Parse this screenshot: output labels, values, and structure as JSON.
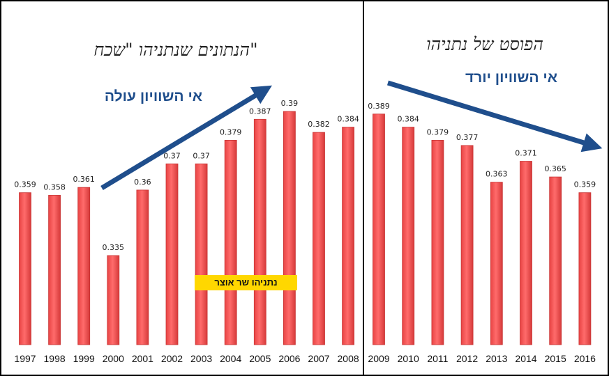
{
  "panels": {
    "left": {
      "title": "הנתונים שנתניהו \"שכח\"",
      "trend_label": "אי השוויון עולה"
    },
    "right": {
      "title": "הפוסט של נתניהו",
      "trend_label": "אי השוויון יורד"
    }
  },
  "annotation": {
    "label": "נתניהו שר אוצר"
  },
  "colors": {
    "bar": "#f25656",
    "bar_edge": "#c83535",
    "arrow": "#1f4e8c",
    "annotation_bg": "#ffd700"
  },
  "chart_data": [
    {
      "type": "bar",
      "categories": [
        "1997",
        "1998",
        "1999",
        "2000",
        "2001",
        "2002",
        "2003",
        "2004",
        "2005",
        "2006",
        "2007",
        "2008"
      ],
      "values": [
        0.359,
        0.358,
        0.361,
        0.335,
        0.36,
        0.37,
        0.37,
        0.379,
        0.387,
        0.39,
        0.382,
        0.384
      ],
      "value_labels": [
        "0.359",
        "0.358",
        "0.361",
        "0.335",
        "0.36",
        "0.37",
        "0.37",
        "0.379",
        "0.387",
        "0.39",
        "0.382",
        "0.384"
      ],
      "title": "הנתונים שנתניהו \"שכח\"",
      "annotations": [
        "אי השוויון עולה",
        "נתניהו שר אוצר"
      ],
      "grid": false,
      "legend": "none"
    },
    {
      "type": "bar",
      "categories": [
        "2009",
        "2010",
        "2011",
        "2012",
        "2013",
        "2014",
        "2015",
        "2016"
      ],
      "values": [
        0.389,
        0.384,
        0.379,
        0.377,
        0.363,
        0.371,
        0.365,
        0.359
      ],
      "value_labels": [
        "0.389",
        "0.384",
        "0.379",
        "0.377",
        "0.363",
        "0.371",
        "0.365",
        "0.359"
      ],
      "title": "הפוסט של נתניהו",
      "annotations": [
        "אי השוויון יורד"
      ],
      "grid": false,
      "legend": "none"
    }
  ]
}
